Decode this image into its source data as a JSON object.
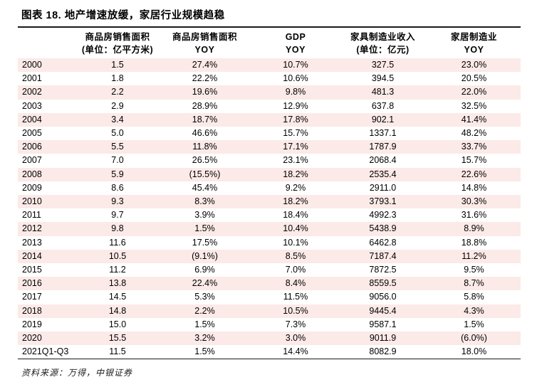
{
  "page": {
    "title": "图表 18. 地产增速放缓，家居行业规模趋稳",
    "source_note": "资料来源：万得，中银证券"
  },
  "colors": {
    "stripe_pink": "#fbeae7",
    "rule_black": "#1a1a1a",
    "text": "#000000",
    "background": "#ffffff"
  },
  "chart_data": {
    "type": "table",
    "title": "图表 18. 地产增速放缓，家居行业规模趋稳",
    "columns": [
      {
        "line1": "",
        "line2": ""
      },
      {
        "line1": "商品房销售面积",
        "line2": "(单位：亿平方米)"
      },
      {
        "line1": "商品房销售面积",
        "line2": "YOY"
      },
      {
        "line1": "GDP",
        "line2": "YOY"
      },
      {
        "line1": "家具制造业收入",
        "line2": "(单位：亿元)"
      },
      {
        "line1": "家居制造业",
        "line2": "YOY"
      }
    ],
    "rows": [
      [
        "2000",
        "1.5",
        "27.4%",
        "10.7%",
        "327.5",
        "23.0%"
      ],
      [
        "2001",
        "1.8",
        "22.2%",
        "10.6%",
        "394.5",
        "20.5%"
      ],
      [
        "2002",
        "2.2",
        "19.6%",
        "9.8%",
        "481.3",
        "22.0%"
      ],
      [
        "2003",
        "2.9",
        "28.9%",
        "12.9%",
        "637.8",
        "32.5%"
      ],
      [
        "2004",
        "3.4",
        "18.7%",
        "17.8%",
        "902.1",
        "41.4%"
      ],
      [
        "2005",
        "5.0",
        "46.6%",
        "15.7%",
        "1337.1",
        "48.2%"
      ],
      [
        "2006",
        "5.5",
        "11.8%",
        "17.1%",
        "1787.9",
        "33.7%"
      ],
      [
        "2007",
        "7.0",
        "26.5%",
        "23.1%",
        "2068.4",
        "15.7%"
      ],
      [
        "2008",
        "5.9",
        "(15.5%)",
        "18.2%",
        "2535.4",
        "22.6%"
      ],
      [
        "2009",
        "8.6",
        "45.4%",
        "9.2%",
        "2911.0",
        "14.8%"
      ],
      [
        "2010",
        "9.3",
        "8.3%",
        "18.2%",
        "3793.1",
        "30.3%"
      ],
      [
        "2011",
        "9.7",
        "3.9%",
        "18.4%",
        "4992.3",
        "31.6%"
      ],
      [
        "2012",
        "9.8",
        "1.5%",
        "10.4%",
        "5438.9",
        "8.9%"
      ],
      [
        "2013",
        "11.6",
        "17.5%",
        "10.1%",
        "6462.8",
        "18.8%"
      ],
      [
        "2014",
        "10.5",
        "(9.1%)",
        "8.5%",
        "7187.4",
        "11.2%"
      ],
      [
        "2015",
        "11.2",
        "6.9%",
        "7.0%",
        "7872.5",
        "9.5%"
      ],
      [
        "2016",
        "13.8",
        "22.4%",
        "8.4%",
        "8559.5",
        "8.7%"
      ],
      [
        "2017",
        "14.5",
        "5.3%",
        "11.5%",
        "9056.0",
        "5.8%"
      ],
      [
        "2018",
        "14.8",
        "2.2%",
        "10.5%",
        "9445.4",
        "4.3%"
      ],
      [
        "2019",
        "15.0",
        "1.5%",
        "7.3%",
        "9587.1",
        "1.5%"
      ],
      [
        "2020",
        "15.5",
        "3.2%",
        "3.0%",
        "9011.9",
        "(6.0%)"
      ],
      [
        "2021Q1-Q3",
        "11.5",
        "1.5%",
        "14.4%",
        "8082.9",
        "18.0%"
      ]
    ],
    "source": "资料来源：万得，中银证券"
  }
}
